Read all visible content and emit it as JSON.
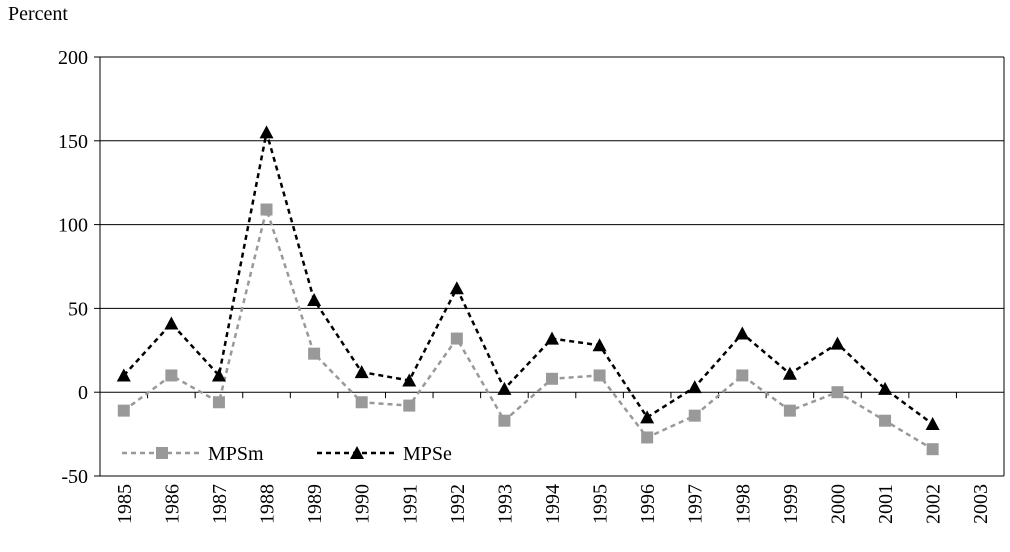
{
  "chart_data": {
    "type": "line",
    "y_label": "Percent",
    "categories": [
      "1985",
      "1986",
      "1987",
      "1988",
      "1989",
      "1990",
      "1991",
      "1992",
      "1993",
      "1994",
      "1995",
      "1996",
      "1997",
      "1998",
      "1999",
      "2000",
      "2001",
      "2002",
      "2003"
    ],
    "series": [
      {
        "name": "MPSm",
        "color": "#999999",
        "marker": "square",
        "values": [
          -11,
          10,
          -6,
          109,
          23,
          -6,
          -8,
          32,
          -17,
          8,
          10,
          -27,
          -14,
          10,
          -11,
          0,
          -17,
          -34,
          null
        ]
      },
      {
        "name": "MPSe",
        "color": "#000000",
        "marker": "triangle",
        "values": [
          10,
          41,
          10,
          155,
          55,
          12,
          7,
          62,
          2,
          32,
          28,
          -15,
          3,
          35,
          11,
          29,
          2,
          -19,
          null
        ]
      }
    ],
    "ylim": [
      -50,
      200
    ],
    "yticks": [
      -50,
      0,
      50,
      100,
      150,
      200
    ],
    "grid": true,
    "legend": "lower left"
  }
}
